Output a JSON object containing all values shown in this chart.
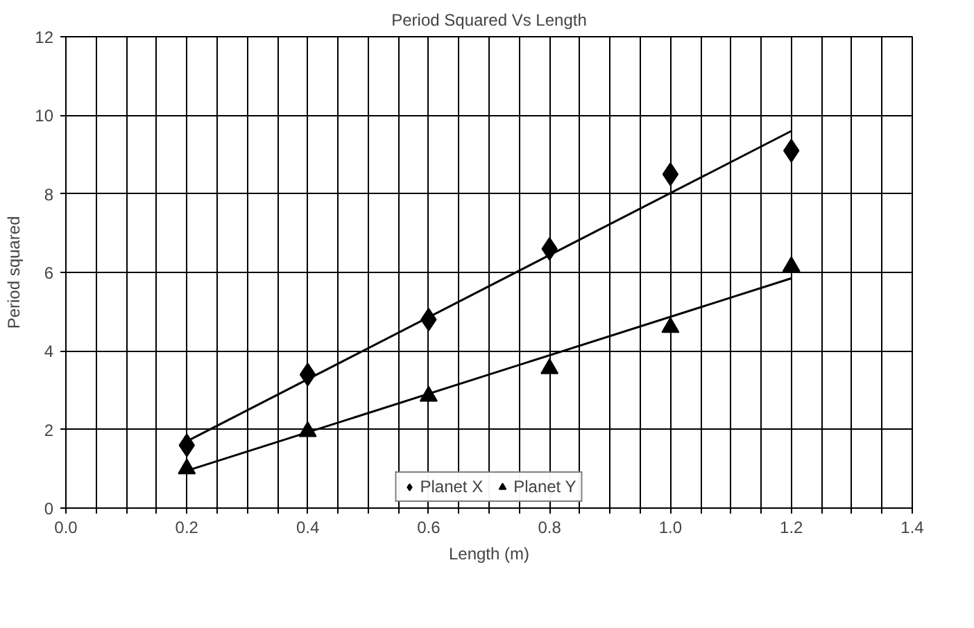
{
  "chart_data": {
    "type": "scatter",
    "title": "Period Squared Vs Length",
    "xlabel": "Length (m)",
    "ylabel": "Period squared",
    "xlim": [
      0,
      1.4
    ],
    "ylim": [
      0,
      12
    ],
    "xticks": [
      {
        "value": 0.0,
        "label": "0.0"
      },
      {
        "value": 0.05,
        "label": null
      },
      {
        "value": 0.1,
        "label": null
      },
      {
        "value": 0.15,
        "label": null
      },
      {
        "value": 0.2,
        "label": "0.2"
      },
      {
        "value": 0.25,
        "label": null
      },
      {
        "value": 0.3,
        "label": null
      },
      {
        "value": 0.35,
        "label": null
      },
      {
        "value": 0.4,
        "label": "0.4"
      },
      {
        "value": 0.45,
        "label": null
      },
      {
        "value": 0.5,
        "label": null
      },
      {
        "value": 0.55,
        "label": null
      },
      {
        "value": 0.6,
        "label": "0.6"
      },
      {
        "value": 0.65,
        "label": null
      },
      {
        "value": 0.7,
        "label": null
      },
      {
        "value": 0.75,
        "label": null
      },
      {
        "value": 0.8,
        "label": "0.8"
      },
      {
        "value": 0.85,
        "label": null
      },
      {
        "value": 0.9,
        "label": null
      },
      {
        "value": 0.95,
        "label": null
      },
      {
        "value": 1.0,
        "label": "1.0"
      },
      {
        "value": 1.05,
        "label": null
      },
      {
        "value": 1.1,
        "label": null
      },
      {
        "value": 1.15,
        "label": null
      },
      {
        "value": 1.2,
        "label": "1.2"
      },
      {
        "value": 1.25,
        "label": null
      },
      {
        "value": 1.3,
        "label": null
      },
      {
        "value": 1.35,
        "label": null
      },
      {
        "value": 1.4,
        "label": "1.4"
      }
    ],
    "yticks": [
      0,
      2,
      4,
      6,
      8,
      10,
      12
    ],
    "grid": true,
    "legend": "bottom",
    "series": [
      {
        "name": "Planet X",
        "color": "#000000",
        "marker": "diamond",
        "x": [
          0.2,
          0.4,
          0.6,
          0.8,
          1.0,
          1.2
        ],
        "values": [
          1.6,
          3.4,
          4.8,
          6.6,
          8.5,
          9.1
        ]
      },
      {
        "name": "Planet Y",
        "color": "#000000",
        "marker": "triangle",
        "x": [
          0.2,
          0.4,
          0.6,
          0.8,
          1.0,
          1.2
        ],
        "values": [
          1.0,
          1.95,
          2.85,
          3.55,
          4.6,
          6.15
        ]
      },
      {
        "type": "line",
        "color": "#000000",
        "marker": "none",
        "line_style": "solid",
        "x": [
          0.2,
          1.2
        ],
        "values": [
          1.7,
          9.6
        ]
      },
      {
        "type": "line",
        "color": "#000000",
        "marker": "none",
        "line_style": "solid",
        "x": [
          0.2,
          1.2
        ],
        "values": [
          0.95,
          5.85
        ]
      }
    ]
  }
}
